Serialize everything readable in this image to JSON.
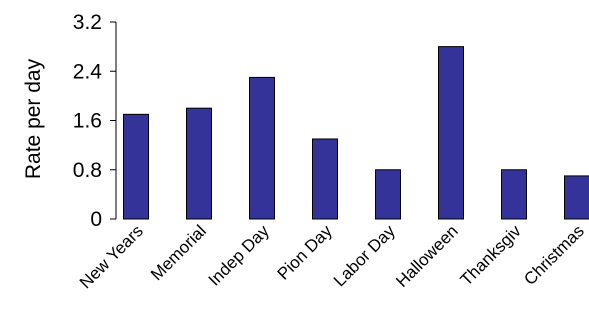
{
  "chart_data": {
    "type": "bar",
    "title": "",
    "xlabel": "",
    "ylabel": "Rate per day",
    "categories": [
      "New Years",
      "Memorial",
      "Indep Day",
      "Pion Day",
      "Labor Day",
      "Halloween",
      "Thanksgiv",
      "Christmas"
    ],
    "values": [
      1.7,
      1.8,
      2.3,
      1.3,
      0.8,
      2.8,
      0.8,
      0.7
    ],
    "ylim": [
      0,
      3.2
    ],
    "yticks": [
      0,
      0.8,
      1.6,
      2.4,
      3.2
    ],
    "ytick_labels": [
      "0",
      "0.8",
      "1.6",
      "2.4",
      "3.2"
    ],
    "grid": false,
    "legend": "none",
    "colors": {
      "bar_fill": "#333399",
      "bar_stroke": "#000000",
      "axis": "#000000"
    }
  }
}
